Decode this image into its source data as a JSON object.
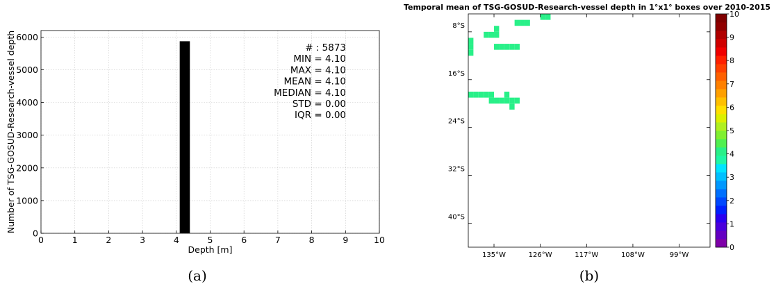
{
  "colors": {
    "bar": "#000000",
    "grid": "#c8c8c8",
    "cell": "#1ef6a6"
  },
  "chart_data": [
    {
      "type": "bar",
      "panel_label": "(a)",
      "xlabel": "Depth [m]",
      "ylabel": "Number of TSG-GOSUD-Research-vessel depth",
      "xlim": [
        0,
        10
      ],
      "ylim": [
        0,
        6200
      ],
      "xticks": [
        "0",
        "1",
        "2",
        "3",
        "4",
        "5",
        "6",
        "7",
        "8",
        "9",
        "10"
      ],
      "yticks": [
        "0",
        "1000",
        "2000",
        "3000",
        "4000",
        "5000",
        "6000"
      ],
      "bins": [
        {
          "x0": 4.1,
          "x1": 4.4,
          "value": 5873
        }
      ],
      "grid": true,
      "stats": [
        {
          "label": "# : ",
          "value": "5873"
        },
        {
          "label": "MIN = ",
          "value": "4.10"
        },
        {
          "label": "MAX = ",
          "value": " 4.10"
        },
        {
          "label": "MEAN = ",
          "value": "4.10"
        },
        {
          "label": "MEDIAN = ",
          "value": "4.10"
        },
        {
          "label": "STD = ",
          "value": "0.00"
        },
        {
          "label": "IQR = ",
          "value": "0.00"
        }
      ]
    },
    {
      "type": "heatmap",
      "panel_label": "(b)",
      "title": "Temporal mean of TSG-GOSUD-Research-vessel depth in 1°x1° boxes over 2010-2015",
      "lon_range": [
        -140,
        -93
      ],
      "lat_range": [
        -44,
        -5
      ],
      "xticks": [
        {
          "lon": -135,
          "label": "135°W"
        },
        {
          "lon": -126,
          "label": "126°W"
        },
        {
          "lon": -117,
          "label": "117°W"
        },
        {
          "lon": -108,
          "label": "108°W"
        },
        {
          "lon": -99,
          "label": "99°W"
        }
      ],
      "yticks": [
        {
          "lat": -8,
          "label": "8°S"
        },
        {
          "lat": -16,
          "label": "16°S"
        },
        {
          "lat": -24,
          "label": "24°S"
        },
        {
          "lat": -32,
          "label": "32°S"
        },
        {
          "lat": -40,
          "label": "40°S"
        }
      ],
      "cell_value": 4.1,
      "cells": [
        [
          -126,
          -5
        ],
        [
          -125,
          -5
        ],
        [
          -131,
          -6
        ],
        [
          -130,
          -6
        ],
        [
          -129,
          -6
        ],
        [
          -135,
          -7
        ],
        [
          -137,
          -8
        ],
        [
          -136,
          -8
        ],
        [
          -135,
          -8
        ],
        [
          -140,
          -9
        ],
        [
          -140,
          -10
        ],
        [
          -135,
          -10
        ],
        [
          -134,
          -10
        ],
        [
          -133,
          -10
        ],
        [
          -132,
          -10
        ],
        [
          -131,
          -10
        ],
        [
          -140,
          -11
        ],
        [
          -140,
          -18
        ],
        [
          -139,
          -18
        ],
        [
          -138,
          -18
        ],
        [
          -137,
          -18
        ],
        [
          -136,
          -18
        ],
        [
          -133,
          -18
        ],
        [
          -136,
          -19
        ],
        [
          -135,
          -19
        ],
        [
          -134,
          -19
        ],
        [
          -133,
          -19
        ],
        [
          -132,
          -19
        ],
        [
          -131,
          -19
        ],
        [
          -132,
          -20
        ]
      ],
      "colorbar": {
        "min": 0,
        "max": 10,
        "ticks": [
          "0",
          "1",
          "2",
          "3",
          "4",
          "5",
          "6",
          "7",
          "8",
          "9",
          "10"
        ],
        "colors": [
          "#7e00a8",
          "#6400c2",
          "#4a00dc",
          "#2a00f0",
          "#0020ff",
          "#0048ff",
          "#0070ff",
          "#0098ff",
          "#00c0ff",
          "#00e4ff",
          "#1ef6a6",
          "#28f088",
          "#50f050",
          "#80f030",
          "#b0f020",
          "#dcf000",
          "#ffe000",
          "#ffc000",
          "#ffa000",
          "#ff8000",
          "#ff6000",
          "#ff4000",
          "#ff2000",
          "#f00000",
          "#d00000",
          "#b00000",
          "#900000",
          "#800000"
        ]
      }
    }
  ]
}
